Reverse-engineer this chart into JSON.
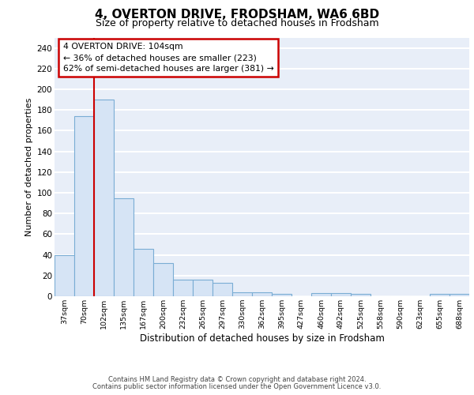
{
  "title1": "4, OVERTON DRIVE, FRODSHAM, WA6 6BD",
  "title2": "Size of property relative to detached houses in Frodsham",
  "xlabel": "Distribution of detached houses by size in Frodsham",
  "ylabel": "Number of detached properties",
  "categories": [
    "37sqm",
    "70sqm",
    "102sqm",
    "135sqm",
    "167sqm",
    "200sqm",
    "232sqm",
    "265sqm",
    "297sqm",
    "330sqm",
    "362sqm",
    "395sqm",
    "427sqm",
    "460sqm",
    "492sqm",
    "525sqm",
    "558sqm",
    "590sqm",
    "623sqm",
    "655sqm",
    "688sqm"
  ],
  "values": [
    40,
    174,
    190,
    95,
    46,
    32,
    16,
    16,
    13,
    4,
    4,
    2,
    0,
    3,
    3,
    2,
    0,
    0,
    0,
    2,
    2
  ],
  "bar_facecolor": "#d6e4f5",
  "bar_edgecolor": "#7aadd4",
  "vline_color": "#cc0000",
  "annotation_box_edgecolor": "#cc0000",
  "ylim": [
    0,
    250
  ],
  "yticks": [
    0,
    20,
    40,
    60,
    80,
    100,
    120,
    140,
    160,
    180,
    200,
    220,
    240
  ],
  "background_color": "#e8eef8",
  "grid_color": "#ffffff",
  "title1_fontsize": 11,
  "title2_fontsize": 9,
  "footer1": "Contains HM Land Registry data © Crown copyright and database right 2024.",
  "footer2": "Contains public sector information licensed under the Open Government Licence v3.0.",
  "annotation_line1": "4 OVERTON DRIVE: 104sqm",
  "annotation_line2": "← 36% of detached houses are smaller (223)",
  "annotation_line3": "62% of semi-detached houses are larger (381) →"
}
